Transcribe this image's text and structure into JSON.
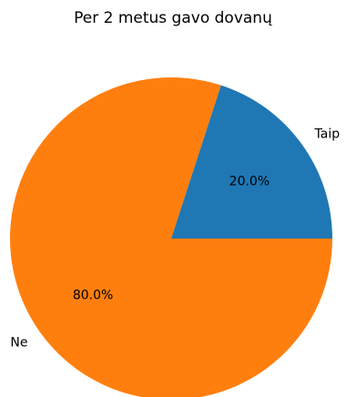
{
  "chart_data": {
    "type": "pie",
    "title": "Per 2 metus gavo dovanų",
    "slices": [
      {
        "label": "Taip",
        "value": 20.0,
        "pct_label": "20.0%",
        "color": "#1f77b4"
      },
      {
        "label": "Ne",
        "value": 80.0,
        "pct_label": "80.0%",
        "color": "#ff7f0e"
      }
    ],
    "start_angle_deg": 0,
    "direction": "counterclockwise",
    "legend": "none"
  }
}
